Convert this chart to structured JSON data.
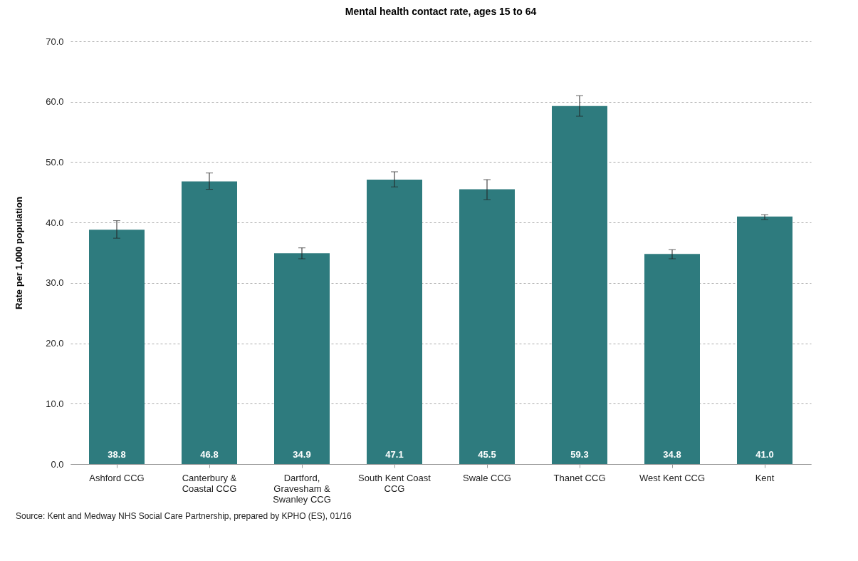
{
  "chart_data": {
    "type": "bar",
    "title": "Mental health contact rate, ages 15 to 64",
    "ylabel": "Rate per 1,000 population",
    "categories": [
      "Ashford CCG",
      "Canterbury & Coastal CCG",
      "Dartford, Gravesham & Swanley CCG",
      "South Kent Coast CCG",
      "Swale CCG",
      "Thanet CCG",
      "West Kent CCG",
      "Kent"
    ],
    "values": [
      38.8,
      46.8,
      34.9,
      47.1,
      45.5,
      59.3,
      34.8,
      41.0
    ],
    "errors": [
      [
        37.4,
        40.3
      ],
      [
        45.5,
        48.2
      ],
      [
        34.0,
        35.8
      ],
      [
        45.9,
        48.4
      ],
      [
        43.8,
        47.1
      ],
      [
        57.6,
        61.0
      ],
      [
        34.0,
        35.5
      ],
      [
        40.5,
        41.3
      ]
    ],
    "value_labels": [
      "38.8",
      "46.8",
      "34.9",
      "47.1",
      "45.5",
      "59.3",
      "34.8",
      "41.0"
    ],
    "color": "#2e7b7e",
    "ylim": [
      0,
      70
    ],
    "yticks": [
      {
        "value": 0,
        "label": "0.0"
      },
      {
        "value": 10,
        "label": "10.0"
      },
      {
        "value": 20,
        "label": "20.0"
      },
      {
        "value": 30,
        "label": "30.0"
      },
      {
        "value": 40,
        "label": "40.0"
      },
      {
        "value": 50,
        "label": "50.0"
      },
      {
        "value": 60,
        "label": "60.0"
      },
      {
        "value": 70,
        "label": "70.0"
      }
    ],
    "grid": "y",
    "annotations": [
      "Source: Kent and Medway NHS Social Care Partnership, prepared by KPHO (ES), 01/16"
    ]
  }
}
